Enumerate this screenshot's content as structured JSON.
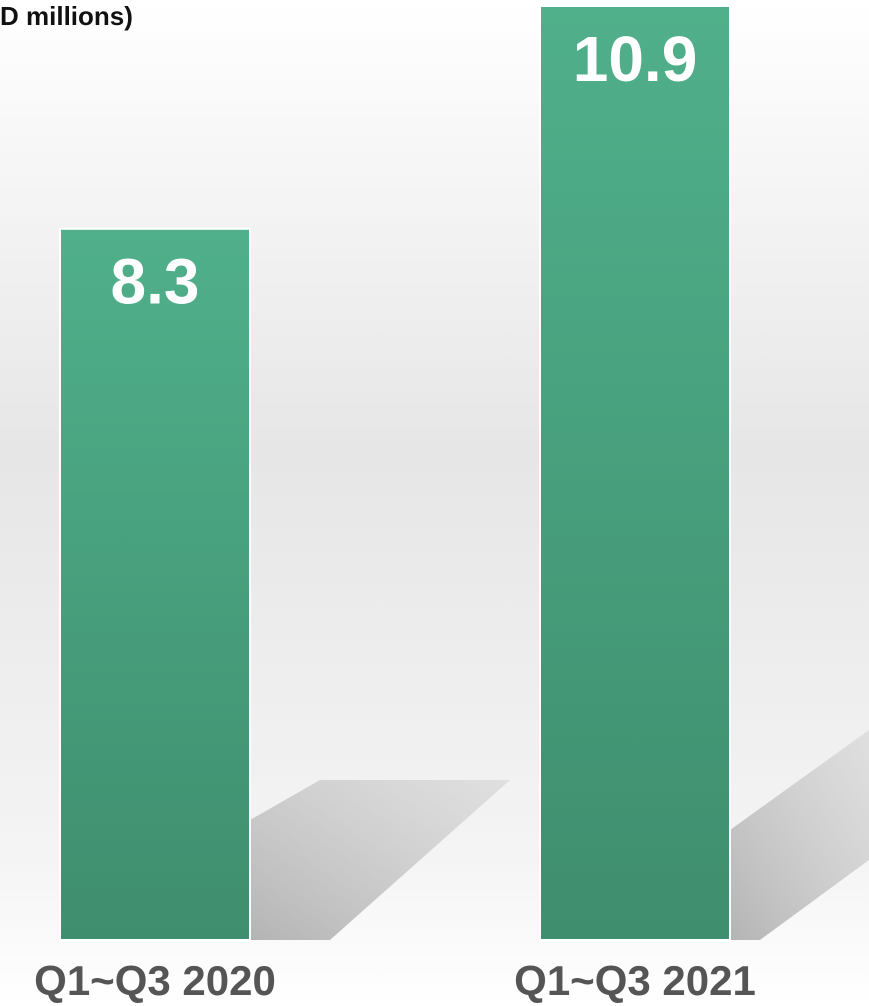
{
  "chart_data": {
    "type": "bar",
    "title": "D millions)",
    "categories": [
      "Q1~Q3 2020",
      "Q1~Q3 2021"
    ],
    "values": [
      8.3,
      10.9
    ],
    "color": "#48a07d"
  }
}
